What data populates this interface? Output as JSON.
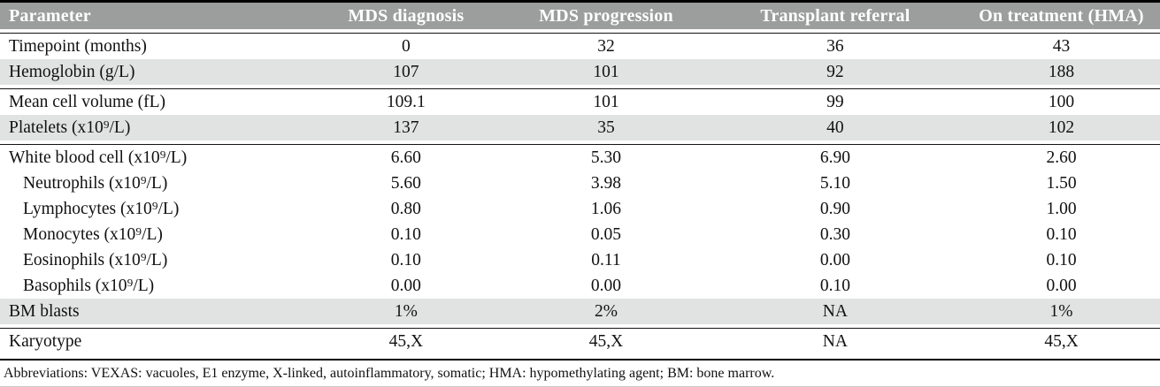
{
  "table": {
    "columns": [
      "Parameter",
      "MDS diagnosis",
      "MDS progression",
      "Transplant referral",
      "On treatment (HMA)"
    ],
    "rows": [
      {
        "parameter": "Timepoint (months)",
        "values": [
          "0",
          "32",
          "36",
          "43"
        ]
      },
      {
        "parameter": "Hemoglobin (g/L)",
        "values": [
          "107",
          "101",
          "92",
          "188"
        ]
      },
      {
        "parameter": "Mean cell volume (fL)",
        "values": [
          "109.1",
          "101",
          "99",
          "100"
        ]
      },
      {
        "parameter": "Platelets (x10⁹/L)",
        "values": [
          "137",
          "35",
          "40",
          "102"
        ]
      },
      {
        "parameter": "White blood cell (x10⁹/L)",
        "values": [
          "6.60",
          "5.30",
          "6.90",
          "2.60"
        ]
      },
      {
        "parameter": "Neutrophils (x10⁹/L)",
        "values": [
          "5.60",
          "3.98",
          "5.10",
          "1.50"
        ]
      },
      {
        "parameter": "Lymphocytes (x10⁹/L)",
        "values": [
          "0.80",
          "1.06",
          "0.90",
          "1.00"
        ]
      },
      {
        "parameter": "Monocytes (x10⁹/L)",
        "values": [
          "0.10",
          "0.05",
          "0.30",
          "0.10"
        ]
      },
      {
        "parameter": "Eosinophils (x10⁹/L)",
        "values": [
          "0.10",
          "0.11",
          "0.00",
          "0.10"
        ]
      },
      {
        "parameter": "Basophils (x10⁹/L)",
        "values": [
          "0.00",
          "0.00",
          "0.10",
          "0.00"
        ]
      },
      {
        "parameter": "BM blasts",
        "values": [
          "1%",
          "2%",
          "NA",
          "1%"
        ]
      },
      {
        "parameter": "Karyotype",
        "values": [
          "45,X",
          "45,X",
          "NA",
          "45,X"
        ]
      }
    ]
  },
  "footnote": "Abbreviations: VEXAS: vacuoles, E1 enzyme, X-linked, autoinflammatory, somatic; HMA: hypomethylating agent; BM: bone marrow.",
  "colors": {
    "header_bg": "#9c9e9e",
    "header_text": "#ffffff",
    "shaded_row_bg": "#e1e3e3",
    "rule": "#141414"
  }
}
